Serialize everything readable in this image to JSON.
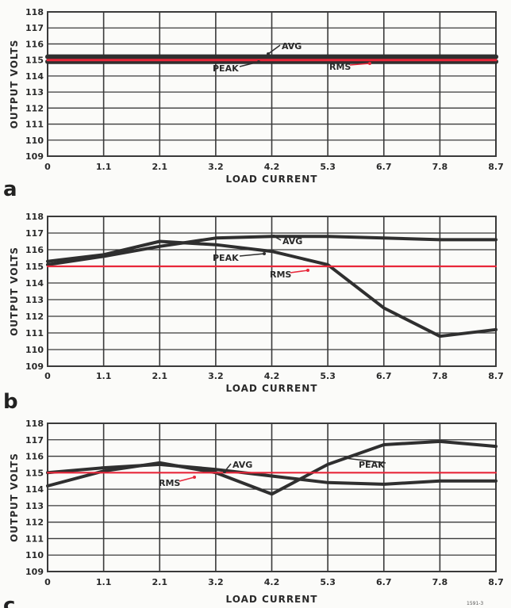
{
  "colors": {
    "grid": "#3a3a3a",
    "curve": "#2f2f2f",
    "rms": "#e8273a",
    "background": "#fbfbf9"
  },
  "credit": "1591-3",
  "chart_data": [
    {
      "type": "line",
      "panel_label": "a",
      "xlabel": "LOAD CURRENT",
      "ylabel": "OUTPUT VOLTS",
      "categories": [
        "0",
        "1.1",
        "2.1",
        "3.2",
        "4.2",
        "5.3",
        "6.7",
        "7.8",
        "8.7"
      ],
      "ylim": [
        109,
        118
      ],
      "yticks": [
        "118",
        "117",
        "116",
        "115",
        "114",
        "113",
        "112",
        "111",
        "110",
        "109"
      ],
      "grid": true,
      "series": [
        {
          "name": "AVG",
          "color": "#2f2f2f",
          "values": [
            115.2,
            115.2,
            115.2,
            115.2,
            115.2,
            115.2,
            115.2,
            115.2,
            115.2
          ]
        },
        {
          "name": "PEAK",
          "color": "#2f2f2f",
          "values": [
            114.9,
            114.9,
            114.9,
            114.9,
            114.9,
            114.9,
            114.9,
            114.9,
            114.9
          ]
        },
        {
          "name": "RMS",
          "color": "#e8273a",
          "values": [
            115,
            115,
            115,
            115,
            115,
            115,
            115,
            115,
            115
          ]
        }
      ]
    },
    {
      "type": "line",
      "panel_label": "b",
      "xlabel": "LOAD CURRENT",
      "ylabel": "OUTPUT VOLTS",
      "categories": [
        "0",
        "1.1",
        "2.1",
        "3.2",
        "4.2",
        "5.3",
        "6.7",
        "7.8",
        "8.7"
      ],
      "ylim": [
        109,
        118
      ],
      "yticks": [
        "118",
        "117",
        "116",
        "115",
        "114",
        "113",
        "112",
        "111",
        "110",
        "109"
      ],
      "grid": true,
      "series": [
        {
          "name": "AVG",
          "color": "#2f2f2f",
          "values": [
            115.1,
            115.6,
            116.2,
            116.7,
            116.8,
            116.8,
            116.7,
            116.6,
            116.6
          ]
        },
        {
          "name": "PEAK",
          "color": "#2f2f2f",
          "values": [
            115.3,
            115.7,
            116.5,
            116.3,
            115.9,
            115.1,
            112.5,
            110.8,
            111.2
          ]
        },
        {
          "name": "RMS",
          "color": "#e8273a",
          "values": [
            115,
            115,
            115,
            115,
            115,
            115,
            115,
            115,
            115
          ]
        }
      ]
    },
    {
      "type": "line",
      "panel_label": "c",
      "xlabel": "LOAD CURRENT",
      "ylabel": "OUTPUT VOLTS",
      "categories": [
        "0",
        "1.1",
        "2.1",
        "3.2",
        "4.2",
        "5.3",
        "6.7",
        "7.8",
        "8.7"
      ],
      "ylim": [
        109,
        118
      ],
      "yticks": [
        "118",
        "117",
        "116",
        "115",
        "114",
        "113",
        "112",
        "111",
        "110",
        "109"
      ],
      "grid": true,
      "series": [
        {
          "name": "AVG",
          "color": "#2f2f2f",
          "values": [
            115.0,
            115.3,
            115.5,
            115.2,
            114.8,
            114.4,
            114.3,
            114.5,
            114.5
          ]
        },
        {
          "name": "PEAK",
          "color": "#2f2f2f",
          "values": [
            114.2,
            115.1,
            115.6,
            115.0,
            113.7,
            115.5,
            116.7,
            116.9,
            116.6
          ]
        },
        {
          "name": "RMS",
          "color": "#e8273a",
          "values": [
            115,
            115,
            115,
            115,
            115,
            115,
            115,
            115,
            115
          ]
        }
      ]
    }
  ]
}
